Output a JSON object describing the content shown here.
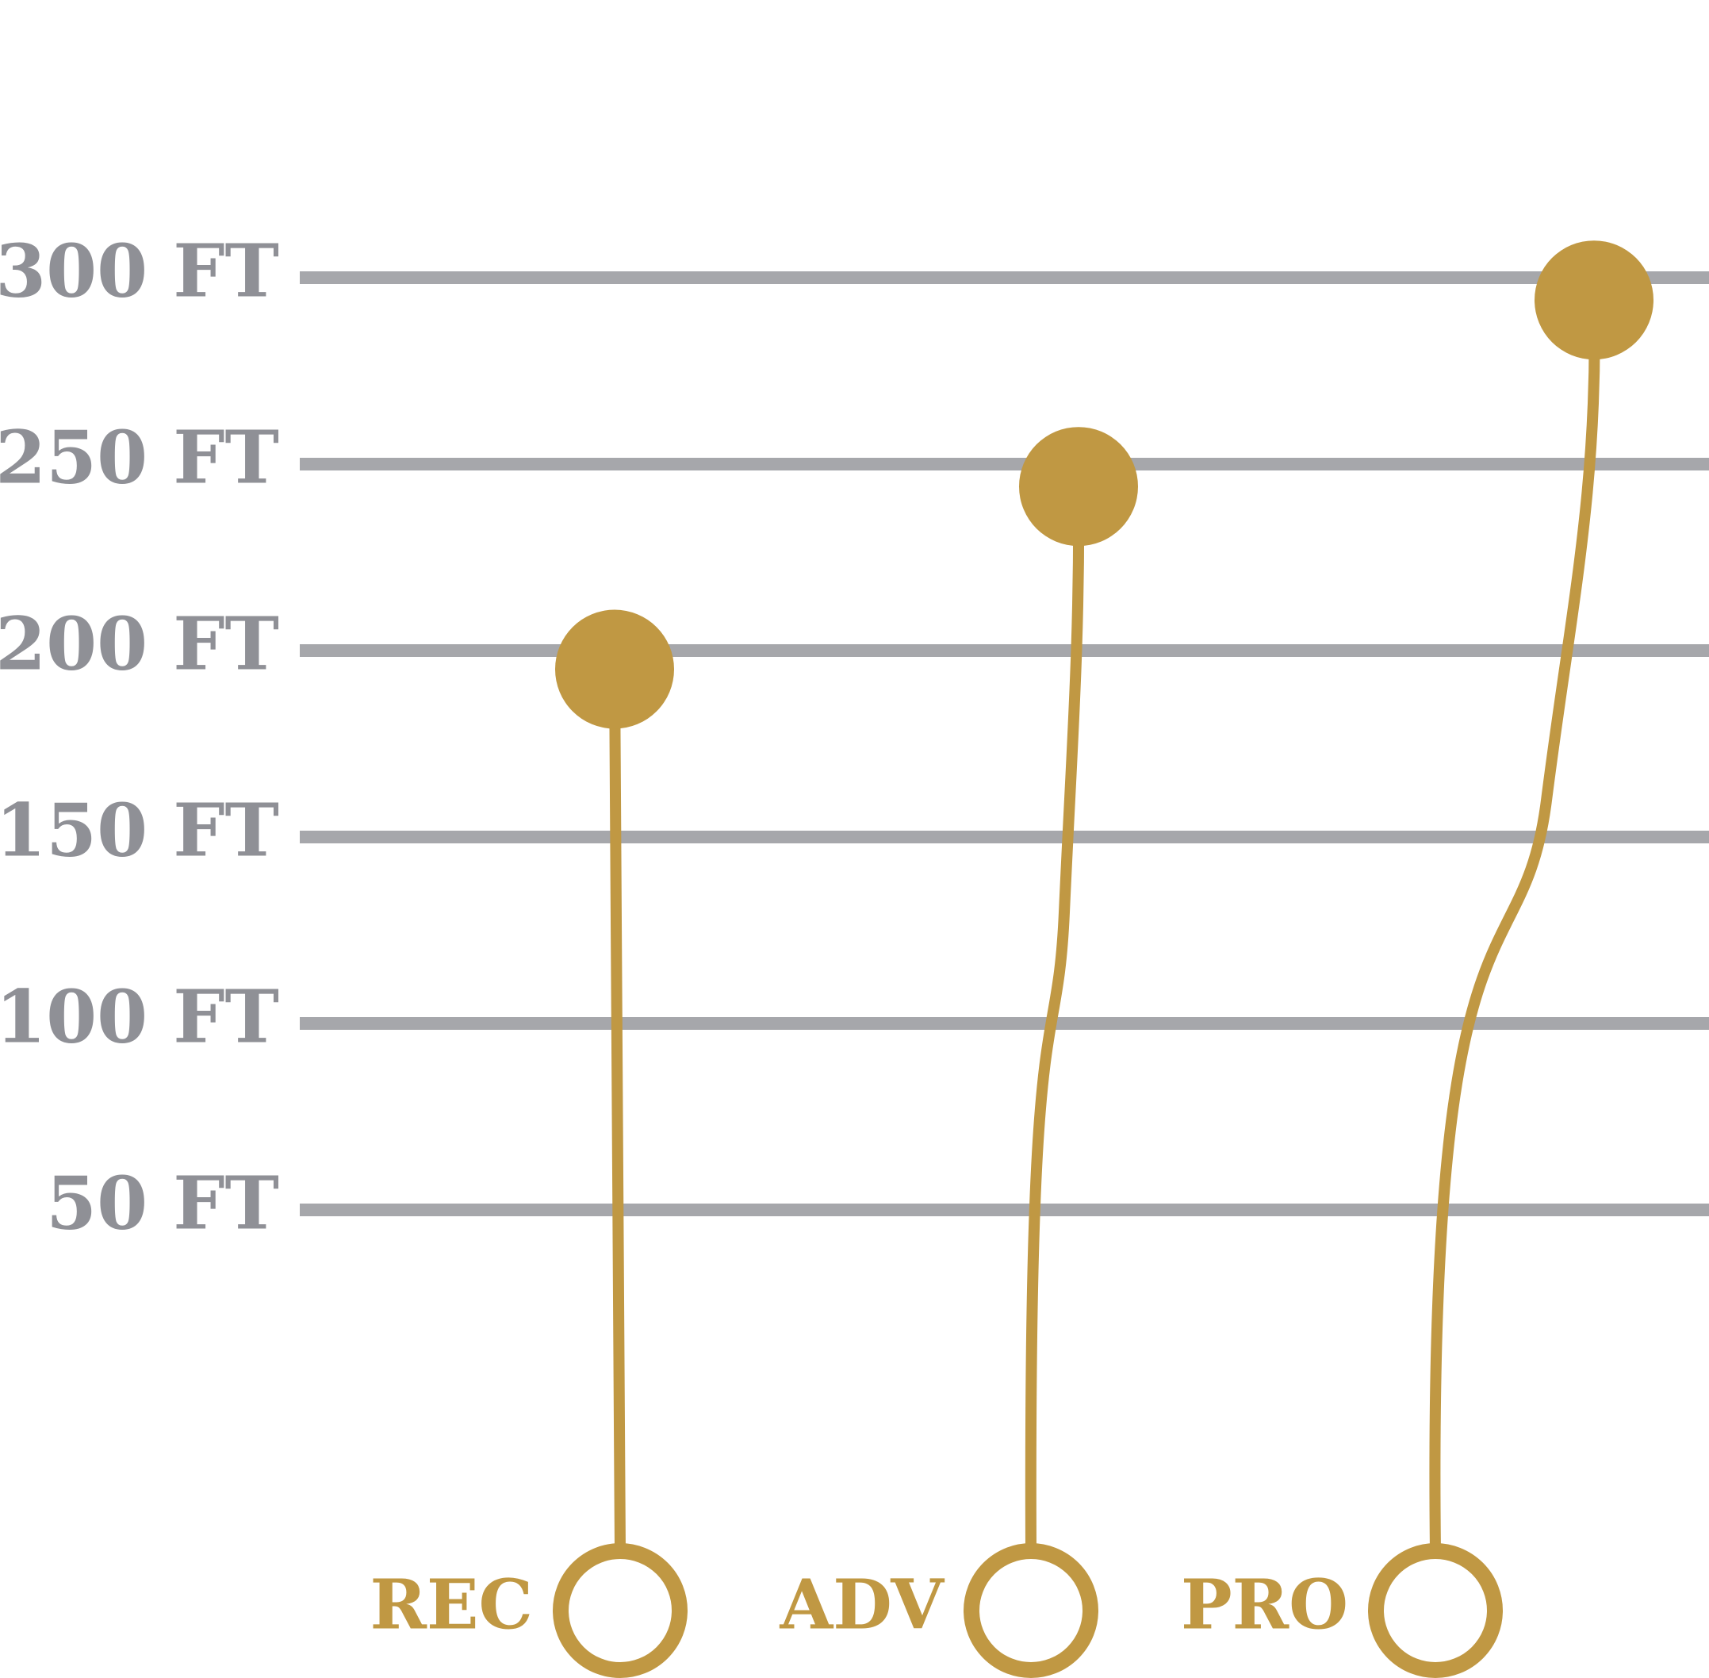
{
  "chart_data": {
    "type": "scatter",
    "title": "",
    "xlabel": "",
    "ylabel": "",
    "ylim": [
      0,
      300
    ],
    "y_unit": "FT",
    "y_ticks": [
      {
        "value": 300,
        "label": "300 FT"
      },
      {
        "value": 250,
        "label": "250 FT"
      },
      {
        "value": 200,
        "label": "200 FT"
      },
      {
        "value": 150,
        "label": "150 FT"
      },
      {
        "value": 100,
        "label": "100 FT"
      },
      {
        "value": 50,
        "label": "50 FT"
      }
    ],
    "categories": [
      "REC",
      "ADV",
      "PRO"
    ],
    "values": [
      195,
      244,
      294
    ],
    "grid": true,
    "legend": "none"
  },
  "colors": {
    "accent": "#c09843",
    "grid": "#a6a7ab",
    "tick_text": "#8f9096",
    "background": "#ffffff"
  }
}
